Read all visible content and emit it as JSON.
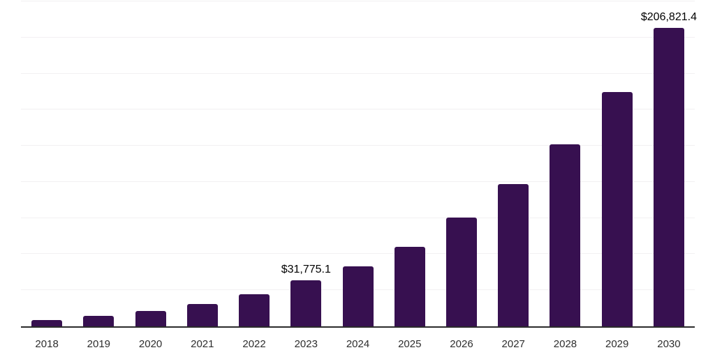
{
  "chart_data": {
    "type": "bar",
    "title": "",
    "xlabel": "",
    "ylabel": "",
    "categories": [
      "2018",
      "2019",
      "2020",
      "2021",
      "2022",
      "2023",
      "2024",
      "2025",
      "2026",
      "2027",
      "2028",
      "2029",
      "2030"
    ],
    "values": [
      4200,
      7100,
      10700,
      15400,
      22000,
      31775.1,
      41700,
      55100,
      75300,
      98500,
      126000,
      162000,
      206821.4
    ],
    "data_labels": [
      "",
      "",
      "",
      "",
      "",
      "$31,775.1",
      "",
      "",
      "",
      "",
      "",
      "",
      "$206,821.4"
    ],
    "ylim": [
      0,
      225000
    ],
    "gridline_interval": 25000,
    "grid": true,
    "legend": false,
    "colors": {
      "bar": "#371050",
      "gridline": "#f2f0f2",
      "axis_line": "#2b2b2b",
      "data_label_text": "#000000",
      "tick_label_text": "#2e2e2e",
      "background": "#ffffff"
    }
  }
}
